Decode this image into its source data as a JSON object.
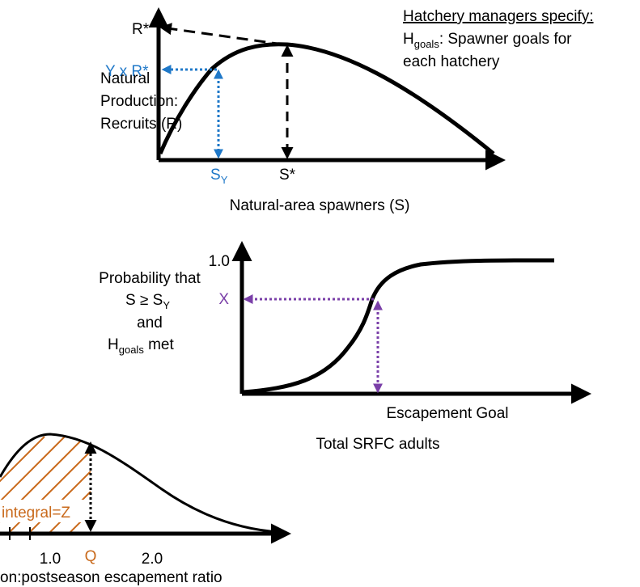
{
  "top_panel": {
    "y_label": [
      "Natural",
      "Production:",
      "Recruits (R)"
    ],
    "r_star": "R*",
    "y_r_star": "Y x R*",
    "s_y": {
      "main": "S",
      "sub": "Y"
    },
    "s_star": "S*",
    "x_label": "Natural-area spawners (S)"
  },
  "hatchery_note": {
    "heading": "Hatchery managers specify:",
    "line1": {
      "main": "H",
      "sub": "goals",
      "rest": ": Spawner goals for"
    },
    "line2": "each hatchery"
  },
  "middle_panel": {
    "y_top": "1.0",
    "x_marker": "X",
    "y_label": {
      "line1": "Probability that",
      "line2": {
        "main": "S ≥ S",
        "sub": "Y"
      },
      "line3": "and",
      "line4": {
        "main": "H",
        "sub": "goals",
        "rest": " met"
      }
    },
    "x_marker_label": "Escapement Goal",
    "x_label": "Total SRFC adults"
  },
  "bottom_panel": {
    "integral": "integral=Z",
    "tick_1": "1.0",
    "tick_q": "Q",
    "tick_2": "2.0",
    "x_label": "on:postseason escapement ratio"
  }
}
